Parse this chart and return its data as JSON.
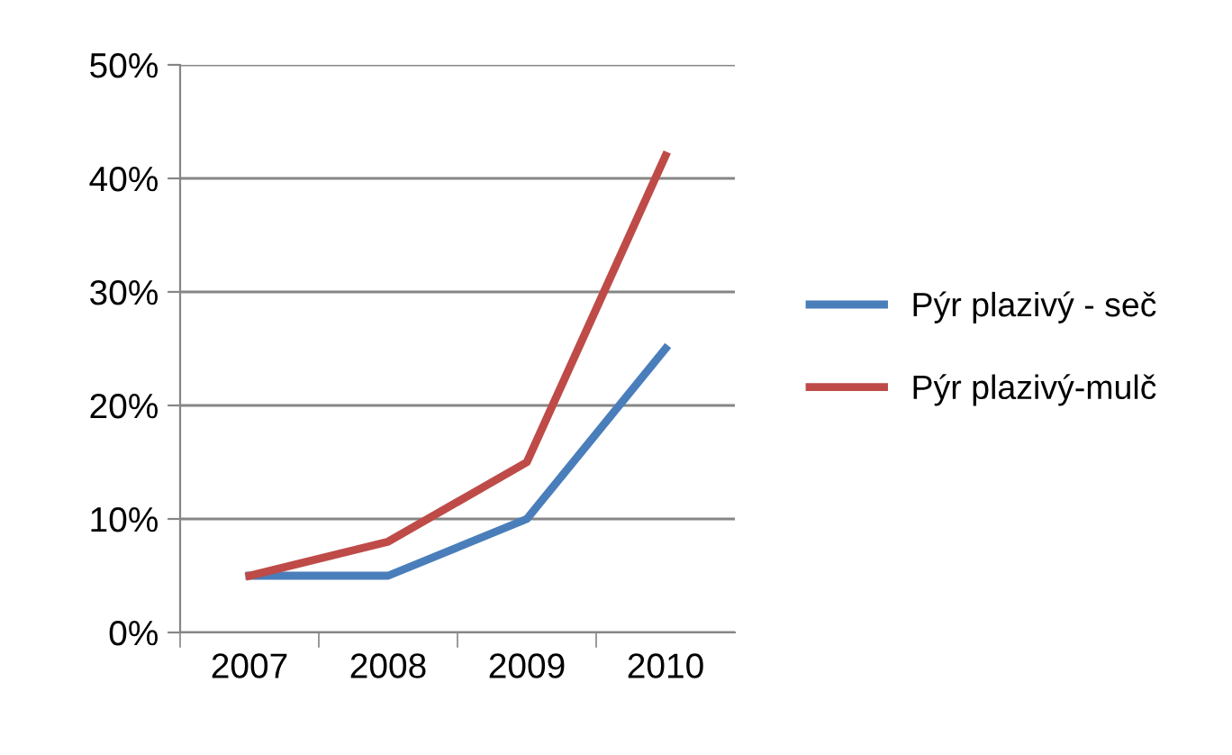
{
  "chart_data": {
    "type": "line",
    "categories": [
      "2007",
      "2008",
      "2009",
      "2010"
    ],
    "series": [
      {
        "name": "Pýr plazivý - seč",
        "color": "#4a7ebb",
        "values": [
          5,
          5,
          10,
          25
        ]
      },
      {
        "name": "Pýr plazivý-mulč",
        "color": "#be4b48",
        "values": [
          5,
          8,
          15,
          42
        ]
      }
    ],
    "ylim": [
      0,
      50
    ],
    "yticks": [
      {
        "value": 0,
        "label": "0%"
      },
      {
        "value": 10,
        "label": "10%"
      },
      {
        "value": 20,
        "label": "20%"
      },
      {
        "value": 30,
        "label": "30%"
      },
      {
        "value": 40,
        "label": "40%"
      },
      {
        "value": 50,
        "label": "50%"
      }
    ],
    "grid": "y",
    "legend": "right",
    "marker": "none",
    "line_style": "solid"
  }
}
